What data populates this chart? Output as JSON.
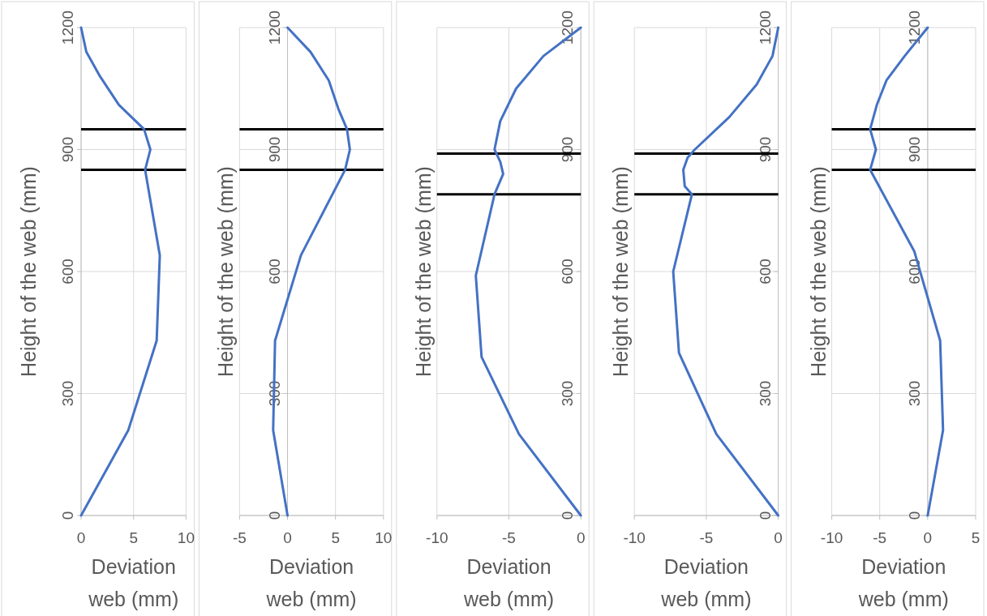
{
  "chart_data": [
    {
      "type": "line",
      "xlabel": "Deviation web (mm)",
      "ylabel": "Height of the web (mm)",
      "xlim": [
        0,
        10
      ],
      "xticks": [
        0,
        5,
        10
      ],
      "ylim": [
        0,
        1200
      ],
      "yticks": [
        0,
        300,
        600,
        900,
        1200
      ],
      "grid": true,
      "ref_lines": [
        {
          "axis": "y",
          "value": 950,
          "color": "#000000"
        },
        {
          "axis": "y",
          "value": 850,
          "color": "#000000"
        }
      ],
      "series": [
        {
          "color": "#4472c4",
          "x": [
            0,
            4.5,
            7.2,
            7.5,
            6.1,
            6.6,
            6.0,
            3.6,
            1.8,
            0.5,
            0
          ],
          "values": [
            0,
            210,
            430,
            640,
            850,
            900,
            950,
            1010,
            1080,
            1140,
            1200
          ]
        }
      ]
    },
    {
      "type": "line",
      "xlabel": "Deviation web (mm)",
      "ylabel": "Height of the web (mm)",
      "xlim": [
        -5,
        10
      ],
      "xticks": [
        -5,
        0,
        5,
        10
      ],
      "ylim": [
        0,
        1200
      ],
      "yticks": [
        0,
        300,
        600,
        900,
        1200
      ],
      "grid": true,
      "ref_lines": [
        {
          "axis": "y",
          "value": 950,
          "color": "#000000"
        },
        {
          "axis": "y",
          "value": 850,
          "color": "#000000"
        }
      ],
      "series": [
        {
          "color": "#4472c4",
          "x": [
            0,
            -1.5,
            -1.3,
            1.4,
            6.0,
            6.5,
            6.2,
            5.3,
            4.3,
            2.4,
            0
          ],
          "values": [
            0,
            210,
            430,
            640,
            850,
            900,
            950,
            1000,
            1070,
            1140,
            1200
          ]
        }
      ]
    },
    {
      "type": "line",
      "xlabel": "Deviation web (mm)",
      "ylabel": "Height of the web (mm)",
      "xlim": [
        -10,
        0
      ],
      "xticks": [
        -10,
        -5,
        0
      ],
      "ylim": [
        0,
        1200
      ],
      "yticks": [
        0,
        300,
        600,
        900,
        1200
      ],
      "grid": true,
      "ref_lines": [
        {
          "axis": "y",
          "value": 890,
          "color": "#000000"
        },
        {
          "axis": "y",
          "value": 790,
          "color": "#000000"
        }
      ],
      "series": [
        {
          "color": "#4472c4",
          "x": [
            0,
            -4.3,
            -6.9,
            -7.3,
            -6.0,
            -5.4,
            -5.6,
            -6.0,
            -5.6,
            -4.5,
            -2.6,
            0
          ],
          "values": [
            0,
            200,
            390,
            590,
            790,
            840,
            870,
            900,
            970,
            1050,
            1130,
            1200
          ]
        }
      ]
    },
    {
      "type": "line",
      "xlabel": "Deviation web (mm)",
      "ylabel": "Height of the web (mm)",
      "xlim": [
        -10,
        0
      ],
      "xticks": [
        -10,
        -5,
        0
      ],
      "ylim": [
        0,
        1200
      ],
      "yticks": [
        0,
        300,
        600,
        900,
        1200
      ],
      "grid": true,
      "ref_lines": [
        {
          "axis": "y",
          "value": 890,
          "color": "#000000"
        },
        {
          "axis": "y",
          "value": 790,
          "color": "#000000"
        }
      ],
      "series": [
        {
          "color": "#4472c4",
          "x": [
            0,
            -4.3,
            -6.9,
            -7.3,
            -6.0,
            -6.5,
            -6.6,
            -6.3,
            -5.8,
            -3.4,
            -1.5,
            -0.4,
            0
          ],
          "values": [
            0,
            200,
            400,
            600,
            790,
            810,
            850,
            880,
            900,
            980,
            1060,
            1130,
            1200
          ]
        }
      ]
    },
    {
      "type": "line",
      "xlabel": "Deviation web (mm)",
      "ylabel": "Height of the web (mm)",
      "xlim": [
        -10,
        5
      ],
      "xticks": [
        -10,
        -5,
        0,
        5
      ],
      "ylim": [
        0,
        1200
      ],
      "yticks": [
        0,
        300,
        600,
        900,
        1200
      ],
      "grid": true,
      "ref_lines": [
        {
          "axis": "y",
          "value": 950,
          "color": "#000000"
        },
        {
          "axis": "y",
          "value": 850,
          "color": "#000000"
        }
      ],
      "series": [
        {
          "color": "#4472c4",
          "x": [
            0,
            1.6,
            1.3,
            -1.4,
            -6.0,
            -5.4,
            -6.0,
            -5.3,
            -4.3,
            -2.4,
            0
          ],
          "values": [
            0,
            210,
            430,
            650,
            850,
            900,
            950,
            1010,
            1070,
            1130,
            1200
          ]
        }
      ]
    }
  ]
}
